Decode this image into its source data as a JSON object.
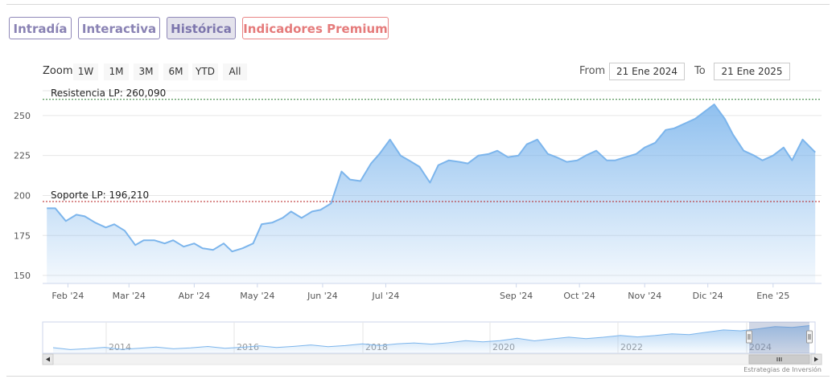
{
  "tabs": [
    {
      "label": "Intradía"
    },
    {
      "label": "Interactiva"
    },
    {
      "label": "Histórica"
    },
    {
      "label": "Indicadores Premium"
    }
  ],
  "toolbar": {
    "zoom_label": "Zoom",
    "zoom_buttons": [
      "1W",
      "1M",
      "3M",
      "6M",
      "YTD",
      "All"
    ],
    "from_label": "From",
    "from_value": "21 Ene 2024",
    "to_label": "To",
    "to_value": "21 Ene 2025"
  },
  "credit": "Estrategias de Inversión",
  "colors": {
    "line": "#7cb5ec",
    "resistance": "#2e7d32",
    "support": "#b71c1c",
    "tab_text": "#8a83b4",
    "premium_text": "#e57b7b"
  },
  "chart_data": {
    "type": "area",
    "x_ticks": [
      "Feb '24",
      "Mar '24",
      "Abr '24",
      "May '24",
      "Jun '24",
      "Jul '24",
      "Sep '24",
      "Oct '24",
      "Nov '24",
      "Dic '24",
      "Ene '25"
    ],
    "y_ticks": [
      150,
      175,
      200,
      225,
      250
    ],
    "ylim": [
      145,
      262
    ],
    "grid": true,
    "series": [
      {
        "x": [
          "2024-01-22",
          "2024-01-26",
          "2024-01-31",
          "2024-02-05",
          "2024-02-09",
          "2024-02-14",
          "2024-02-19",
          "2024-02-23",
          "2024-02-28",
          "2024-03-04",
          "2024-03-08",
          "2024-03-13",
          "2024-03-18",
          "2024-03-22",
          "2024-03-27",
          "2024-04-01",
          "2024-04-05",
          "2024-04-10",
          "2024-04-15",
          "2024-04-19",
          "2024-04-24",
          "2024-04-29",
          "2024-05-03",
          "2024-05-08",
          "2024-05-13",
          "2024-05-17",
          "2024-05-22",
          "2024-05-27",
          "2024-05-31",
          "2024-06-05",
          "2024-06-10",
          "2024-06-14",
          "2024-06-19",
          "2024-06-24",
          "2024-06-28",
          "2024-07-03",
          "2024-07-08",
          "2024-07-12",
          "2024-07-17",
          "2024-07-22",
          "2024-07-26",
          "2024-07-31",
          "2024-08-05",
          "2024-08-09",
          "2024-08-14",
          "2024-08-19",
          "2024-08-23",
          "2024-08-28",
          "2024-09-02",
          "2024-09-06",
          "2024-09-11",
          "2024-09-16",
          "2024-09-20",
          "2024-09-25",
          "2024-09-30",
          "2024-10-04",
          "2024-10-09",
          "2024-10-14",
          "2024-10-18",
          "2024-10-23",
          "2024-10-28",
          "2024-11-01",
          "2024-11-06",
          "2024-11-11",
          "2024-11-15",
          "2024-11-20",
          "2024-11-25",
          "2024-11-29",
          "2024-12-04",
          "2024-12-09",
          "2024-12-13",
          "2024-12-18",
          "2024-12-23",
          "2024-12-27",
          "2025-01-01",
          "2025-01-06",
          "2025-01-10",
          "2025-01-15",
          "2025-01-21"
        ],
        "y": [
          192,
          192,
          184,
          188,
          187,
          183,
          180,
          182,
          178,
          169,
          172,
          172,
          170,
          172,
          168,
          170,
          167,
          166,
          170,
          165,
          167,
          170,
          182,
          183,
          186,
          190,
          186,
          190,
          191,
          195,
          215,
          210,
          209,
          220,
          226,
          235,
          225,
          222,
          218,
          208,
          219,
          222,
          221,
          220,
          225,
          226,
          228,
          224,
          225,
          232,
          235,
          226,
          224,
          221,
          222,
          225,
          228,
          222,
          222,
          224,
          226,
          230,
          233,
          241,
          242,
          245,
          248,
          252,
          257,
          248,
          238,
          228,
          225,
          222,
          225,
          230,
          222,
          235,
          227
        ]
      }
    ],
    "annotations": [
      {
        "label": "Resistencia LP: 260,090",
        "value": 260.09
      },
      {
        "label": "Soporte LP: 196,210",
        "value": 196.21
      }
    ],
    "navigator": {
      "x_ticks": [
        "2014",
        "2016",
        "2018",
        "2020",
        "2022",
        "2024"
      ],
      "y": [
        25,
        26,
        27,
        28,
        28,
        30,
        31,
        33,
        34,
        36,
        38,
        40,
        42,
        45,
        48,
        50,
        52,
        55,
        60,
        62,
        70,
        68,
        75,
        80,
        88,
        95,
        100,
        110,
        105,
        115,
        120,
        125,
        130,
        135,
        140,
        145,
        150,
        160,
        175,
        185,
        195,
        205,
        215,
        225,
        235
      ]
    }
  }
}
